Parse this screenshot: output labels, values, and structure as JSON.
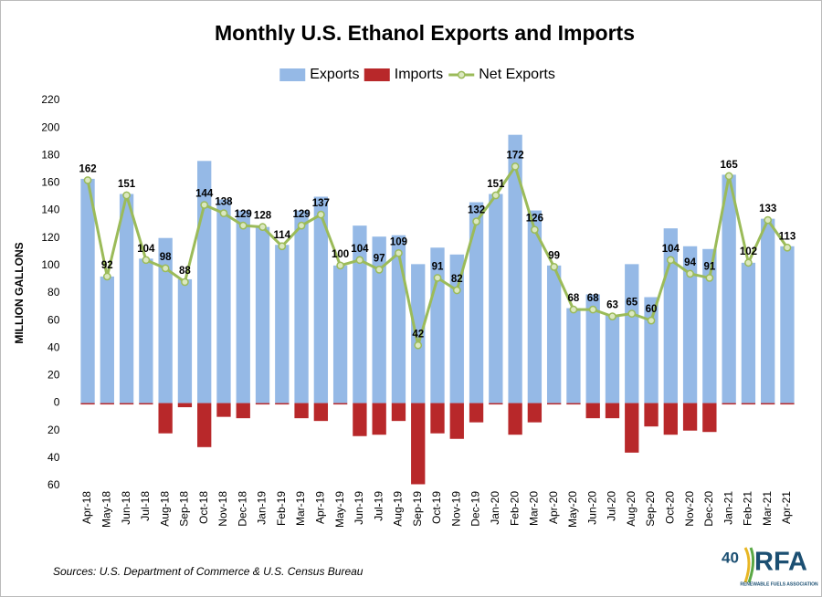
{
  "chart_data": {
    "type": "bar-line",
    "title": "Monthly U.S. Ethanol Exports and Imports",
    "ylabel": "MILLION GALLONS",
    "source": "Sources: U.S. Department of Commerce & U.S. Census Bureau",
    "logo": {
      "anniversary": "40",
      "name": "RFA",
      "tagline": "RENEWABLE FUELS ASSOCIATION"
    },
    "categories": [
      "Apr-18",
      "May-18",
      "Jun-18",
      "Jul-18",
      "Aug-18",
      "Sep-18",
      "Oct-18",
      "Nov-18",
      "Dec-18",
      "Jan-19",
      "Feb-19",
      "Mar-19",
      "Apr-19",
      "May-19",
      "Jun-19",
      "Jul-19",
      "Aug-19",
      "Sep-19",
      "Oct-19",
      "Nov-19",
      "Dec-19",
      "Jan-20",
      "Feb-20",
      "Mar-20",
      "Apr-20",
      "May-20",
      "Jun-20",
      "Jul-20",
      "Aug-20",
      "Sep-20",
      "Oct-20",
      "Nov-20",
      "Dec-20",
      "Jan-21",
      "Feb-21",
      "Mar-21",
      "Apr-21"
    ],
    "series": [
      {
        "name": "Exports",
        "color": "#95b9e6",
        "kind": "bar",
        "values": [
          163,
          92,
          152,
          105,
          120,
          90,
          176,
          148,
          140,
          128,
          115,
          140,
          150,
          100,
          129,
          121,
          122,
          101,
          113,
          108,
          146,
          152,
          195,
          140,
          100,
          69,
          79,
          64,
          101,
          77,
          127,
          114,
          112,
          166,
          102,
          134,
          114
        ]
      },
      {
        "name": "Imports",
        "color": "#b8282a",
        "kind": "bar",
        "values": [
          -1,
          -1,
          -1,
          -1,
          -22,
          -3,
          -32,
          -10,
          -11,
          -1,
          -1,
          -11,
          -13,
          -1,
          -24,
          -23,
          -13,
          -59,
          -22,
          -26,
          -14,
          -1,
          -23,
          -14,
          -1,
          -1,
          -11,
          -11,
          -36,
          -17,
          -23,
          -20,
          -21,
          -1,
          -1,
          -1,
          -1
        ]
      },
      {
        "name": "Net Exports",
        "color": "#9bbb59",
        "kind": "line",
        "values": [
          162,
          92,
          151,
          104,
          98,
          88,
          144,
          138,
          129,
          128,
          114,
          129,
          137,
          100,
          104,
          97,
          109,
          42,
          91,
          82,
          132,
          151,
          172,
          126,
          99,
          68,
          68,
          63,
          65,
          60,
          104,
          94,
          91,
          165,
          102,
          133,
          113
        ]
      }
    ],
    "ylim": [
      -60,
      220
    ],
    "yticks": [
      {
        "value": -60,
        "label": "60"
      },
      {
        "value": -40,
        "label": "40"
      },
      {
        "value": -20,
        "label": "20"
      },
      0,
      20,
      40,
      60,
      80,
      100,
      120,
      140,
      160,
      180,
      200,
      220
    ],
    "grid": false,
    "legend": "top"
  }
}
